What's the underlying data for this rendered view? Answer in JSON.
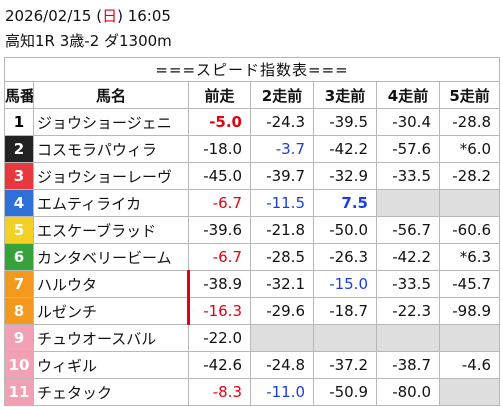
{
  "header": {
    "date_parts": [
      "2026/02/15 (",
      "日",
      ") 16:05"
    ],
    "race": "高知1R 3歳-2 ダ1300m"
  },
  "table": {
    "title": "===スピード指数表===",
    "columns": [
      "馬番",
      "馬名",
      "前走",
      "2走前",
      "3走前",
      "4走前",
      "5走前"
    ],
    "rows": [
      {
        "num": "1",
        "frame": "#ffffff",
        "num_color": "#000000",
        "name": "ジョウショージェニ",
        "speeds": [
          {
            "text": "-5.0",
            "color": "#e60012",
            "bold": true
          },
          {
            "text": "-24.3"
          },
          {
            "text": "-39.5"
          },
          {
            "text": "-30.4"
          },
          {
            "text": "-28.8"
          }
        ]
      },
      {
        "num": "2",
        "frame": "#222222",
        "num_color": "#ffffff",
        "name": "コスモラパウィラ",
        "speeds": [
          {
            "text": "-18.0"
          },
          {
            "text": "-3.7",
            "color": "#1a3fe0"
          },
          {
            "text": "-42.2"
          },
          {
            "text": "-57.6"
          },
          {
            "text": "*6.0"
          }
        ]
      },
      {
        "num": "3",
        "frame": "#e8383d",
        "num_color": "#ffffff",
        "name": "ジョウショーレーヴ",
        "speeds": [
          {
            "text": "-45.0"
          },
          {
            "text": "-39.7"
          },
          {
            "text": "-32.9"
          },
          {
            "text": "-33.5"
          },
          {
            "text": "-28.2"
          }
        ]
      },
      {
        "num": "4",
        "frame": "#2e6fd8",
        "num_color": "#ffffff",
        "name": "エムティライカ",
        "speeds": [
          {
            "text": "-6.7",
            "color": "#e60012"
          },
          {
            "text": "-11.5",
            "color": "#1a3fe0"
          },
          {
            "text": "7.5",
            "color": "#1a3fe0",
            "bold": true
          },
          null,
          null
        ]
      },
      {
        "num": "5",
        "frame": "#f2d024",
        "num_color": "#ffffff",
        "name": "エスケーブラッド",
        "speeds": [
          {
            "text": "-39.6"
          },
          {
            "text": "-21.8"
          },
          {
            "text": "-50.0"
          },
          {
            "text": "-56.7"
          },
          {
            "text": "-60.6"
          }
        ]
      },
      {
        "num": "6",
        "frame": "#35a23a",
        "num_color": "#ffffff",
        "name": "カンタベリービーム",
        "speeds": [
          {
            "text": "-6.7",
            "color": "#e60012"
          },
          {
            "text": "-28.5"
          },
          {
            "text": "-26.3"
          },
          {
            "text": "-42.2"
          },
          {
            "text": "*6.3"
          }
        ]
      },
      {
        "num": "7",
        "frame": "#f39a1e",
        "num_color": "#ffffff",
        "name": "ハルウタ",
        "speeds": [
          {
            "text": "-38.9"
          },
          {
            "text": "-32.1"
          },
          {
            "text": "-15.0",
            "color": "#1a3fe0"
          },
          {
            "text": "-33.5"
          },
          {
            "text": "-45.7"
          }
        ]
      },
      {
        "num": "8",
        "frame": "#f39a1e",
        "num_color": "#ffffff",
        "name": "ルゼンチ",
        "speeds": [
          {
            "text": "-16.3",
            "color": "#e60012"
          },
          {
            "text": "-29.6"
          },
          {
            "text": "-18.7"
          },
          {
            "text": "-22.3"
          },
          {
            "text": "-98.9"
          }
        ]
      },
      {
        "num": "9",
        "frame": "#f2a0b4",
        "num_color": "#ffffff",
        "name": "チュウオースバル",
        "speeds": [
          {
            "text": "-22.0"
          },
          null,
          null,
          null,
          null
        ]
      },
      {
        "num": "10",
        "frame": "#f2a0b4",
        "num_color": "#ffffff",
        "name": "ウィギル",
        "speeds": [
          {
            "text": "-42.6"
          },
          {
            "text": "-24.8"
          },
          {
            "text": "-37.2"
          },
          {
            "text": "-38.7"
          },
          {
            "text": "-4.6"
          }
        ]
      },
      {
        "num": "11",
        "frame": "#f2a0b4",
        "num_color": "#ffffff",
        "name": "チェタック",
        "speeds": [
          {
            "text": "-8.3",
            "color": "#e60012"
          },
          {
            "text": "-11.0",
            "color": "#1a3fe0"
          },
          {
            "text": "-50.9"
          },
          {
            "text": "-80.0"
          },
          null
        ]
      }
    ]
  }
}
